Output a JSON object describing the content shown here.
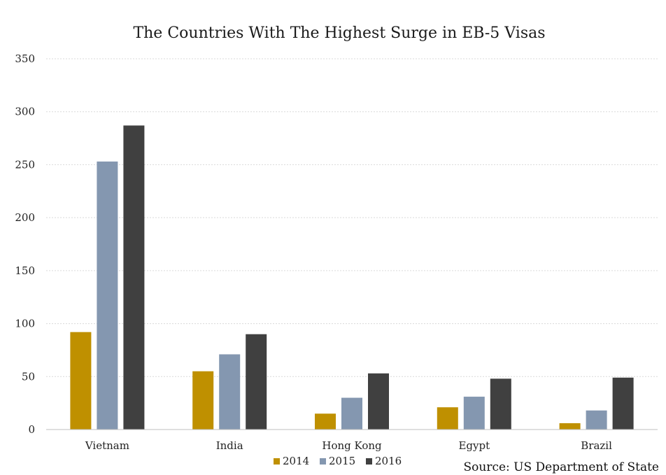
{
  "chart_data": {
    "type": "bar",
    "title": "The Countries With The Highest Surge in EB-5 Visas",
    "categories": [
      "Vietnam",
      "India",
      "Hong Kong",
      "Egypt",
      "Brazil"
    ],
    "series": [
      {
        "name": "2014",
        "color": "#bf9000",
        "values": [
          92,
          55,
          15,
          21,
          6
        ]
      },
      {
        "name": "2015",
        "color": "#8497b0",
        "values": [
          253,
          71,
          30,
          31,
          18
        ]
      },
      {
        "name": "2016",
        "color": "#404040",
        "values": [
          287,
          90,
          53,
          48,
          49
        ]
      }
    ],
    "ylim": [
      0,
      350
    ],
    "yticks": [
      0,
      50,
      100,
      150,
      200,
      250,
      300,
      350
    ],
    "grid": true,
    "legend_position": "bottom",
    "source": "Source: US Department of State"
  }
}
